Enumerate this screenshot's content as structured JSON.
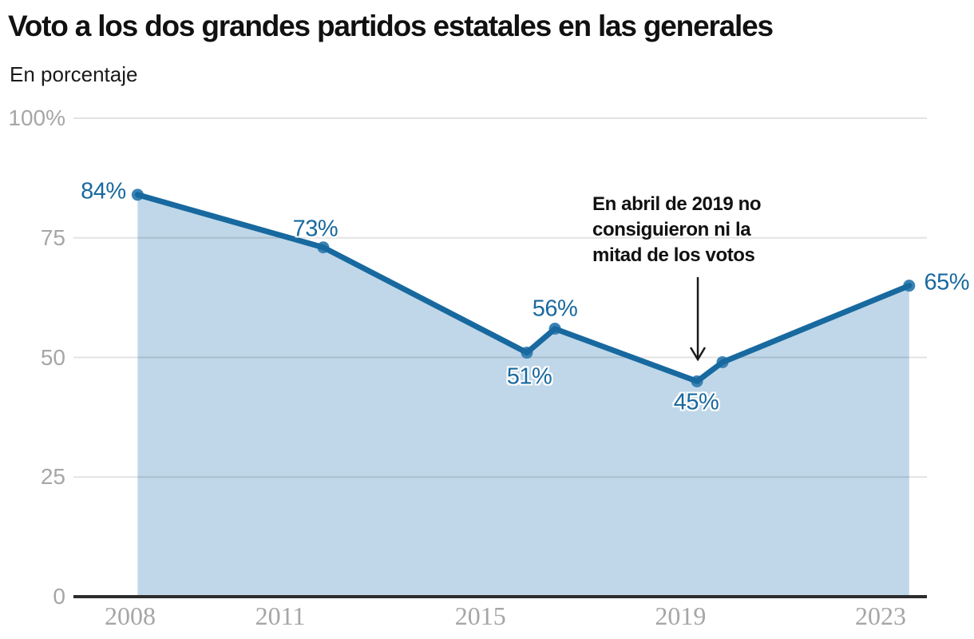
{
  "chart_data": {
    "type": "area",
    "title": "Voto a los dos grandes partidos estatales en las generales",
    "subtitle": "En porcentaje",
    "x": [
      2008.15,
      2011.86,
      2015.93,
      2016.49,
      2019.33,
      2019.84,
      2023.57
    ],
    "values": [
      84,
      73,
      51,
      56,
      45,
      49,
      65
    ],
    "point_labels": [
      "84%",
      "73%",
      "51%",
      "56%",
      "45%",
      "",
      "65%"
    ],
    "x_ticks": [
      {
        "label": "2008",
        "year": 2008
      },
      {
        "label": "2011",
        "year": 2011
      },
      {
        "label": "2015",
        "year": 2015
      },
      {
        "label": "2019",
        "year": 2019
      },
      {
        "label": "2023",
        "year": 2023
      }
    ],
    "y_ticks": [
      {
        "label": "100%",
        "value": 100
      },
      {
        "label": "75",
        "value": 75
      },
      {
        "label": "50",
        "value": 50
      },
      {
        "label": "25",
        "value": 25
      },
      {
        "label": "0",
        "value": 0
      }
    ],
    "ylim": [
      0,
      100
    ],
    "grid": "horizontal-only",
    "legend": "none",
    "annotation": {
      "lines": [
        "En abril de 2019 no",
        "consiguieron ni la",
        "mitad de los votos"
      ],
      "full_text": "En abril de 2019 no consiguieron ni la mitad de los votos",
      "arrow_points_to_value": "45%"
    },
    "colors": {
      "line": "#17699f",
      "area_fill": "#bfd7e8",
      "marker": "#3b82b3",
      "point_label": "#1a699e",
      "gridline": "#e3e3e3",
      "axis_line": "#2d2d2d",
      "tick_text": "#a6a6a6",
      "heading_text": "#111111"
    }
  }
}
